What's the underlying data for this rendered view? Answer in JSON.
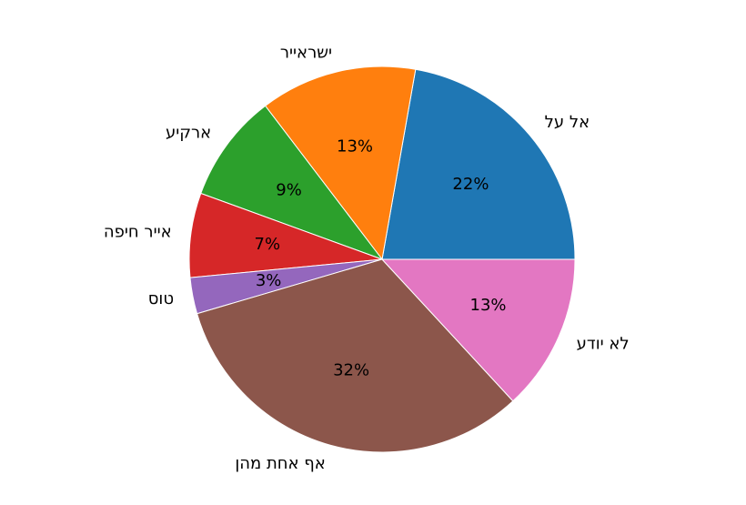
{
  "chart_data": {
    "type": "pie",
    "categories": [
      "אל על",
      "ישראייר",
      "ארקיע",
      "אייר חיפה",
      "טוס",
      "אף אחת מהן",
      "לא יודע"
    ],
    "values": [
      22,
      13,
      9,
      7,
      3,
      32,
      13
    ],
    "value_labels": [
      "22%",
      "13%",
      "9%",
      "7%",
      "3%",
      "32%",
      "13%"
    ],
    "colors": [
      "#1f77b4",
      "#ff7f0e",
      "#2ca02c",
      "#d62728",
      "#9467bd",
      "#8c564b",
      "#e377c2"
    ]
  }
}
